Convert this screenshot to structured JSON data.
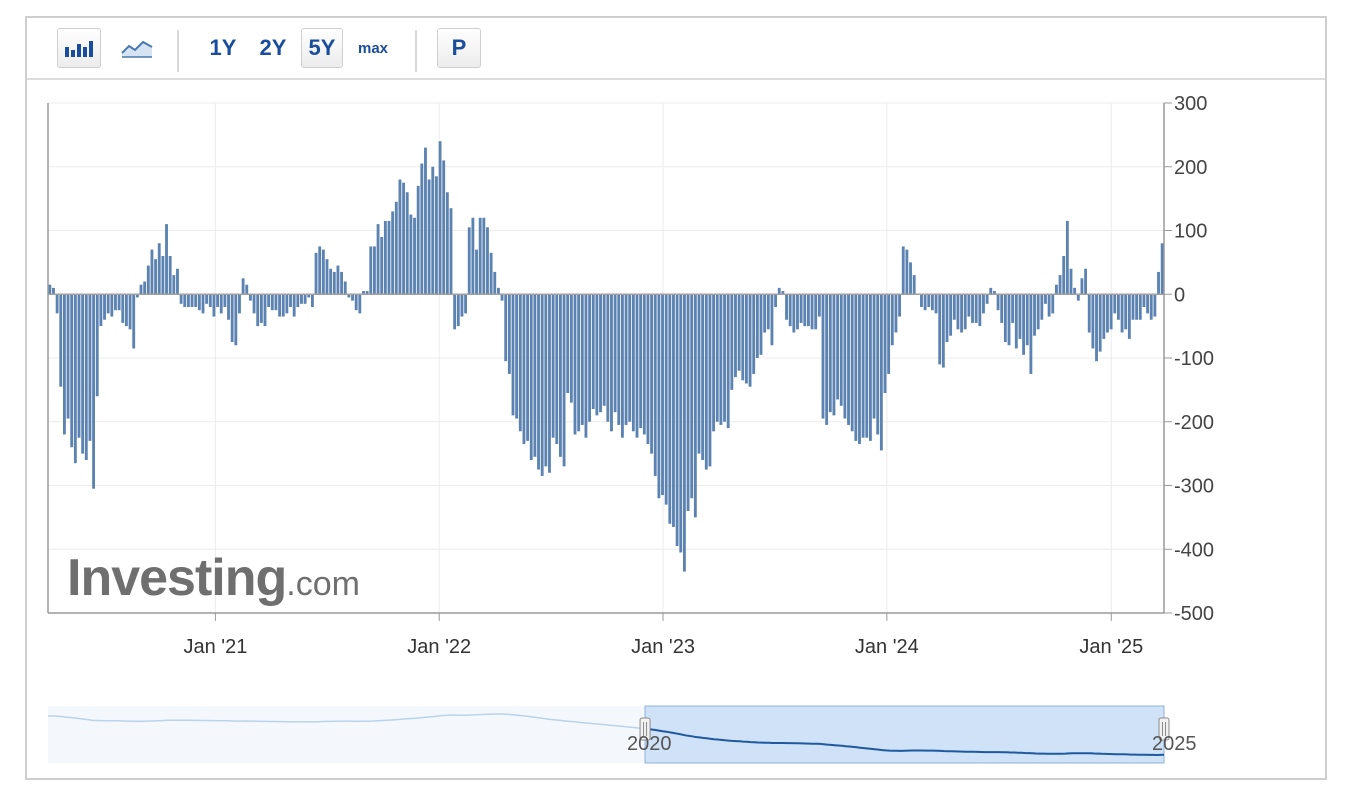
{
  "toolbar": {
    "range_buttons": [
      "1Y",
      "2Y",
      "5Y",
      "max"
    ],
    "active_range": "5Y",
    "p_label": "P",
    "bar_icon": "bar-chart-icon",
    "line_icon": "line-chart-icon"
  },
  "watermark": {
    "brand": "Investing",
    "suffix": ".com",
    "accent": "#f0a830"
  },
  "colors": {
    "bar": "#5b82b0",
    "grid": "#ececec",
    "axis": "#9a9a9a",
    "navigator_line": "#1f5a9e",
    "navigator_fill": "#cfe2f7",
    "navigator_bg_line": "#b9d3ec"
  },
  "chart_data": {
    "type": "bar",
    "ylim": [
      -500,
      300
    ],
    "y_ticks": [
      300,
      200,
      100,
      0,
      -100,
      -200,
      -300,
      -400,
      -500
    ],
    "x_ticks": [
      {
        "label": "Jan '21",
        "date": "2021-01-01"
      },
      {
        "label": "Jan '22",
        "date": "2022-01-01"
      },
      {
        "label": "Jan '23",
        "date": "2023-01-01"
      },
      {
        "label": "Jan '24",
        "date": "2024-01-01"
      },
      {
        "label": "Jan '25",
        "date": "2025-01-01"
      }
    ],
    "x_start": "2020-04-03",
    "x_end": "2025-03-28",
    "frequency": "weekly",
    "grid": true,
    "series": [
      {
        "values": [
          15,
          10,
          -30,
          -145,
          -220,
          -195,
          -240,
          -265,
          -225,
          -250,
          -260,
          -230,
          -305,
          -160,
          -50,
          -40,
          -30,
          -35,
          -25,
          -25,
          -45,
          -50,
          -55,
          -85,
          -5,
          15,
          20,
          45,
          70,
          55,
          80,
          60,
          110,
          60,
          30,
          40,
          -15,
          -20,
          -20,
          -20,
          -20,
          -25,
          -30,
          -15,
          -20,
          -35,
          -20,
          -30,
          -20,
          -40,
          -75,
          -80,
          -30,
          25,
          15,
          -10,
          -30,
          -50,
          -45,
          -50,
          -20,
          -25,
          -25,
          -35,
          -35,
          -30,
          -20,
          -35,
          -20,
          -15,
          -15,
          -5,
          -20,
          65,
          75,
          70,
          55,
          40,
          35,
          45,
          35,
          20,
          -5,
          -10,
          -25,
          -30,
          5,
          5,
          75,
          75,
          110,
          90,
          115,
          115,
          130,
          145,
          180,
          175,
          160,
          125,
          120,
          170,
          205,
          230,
          180,
          200,
          185,
          240,
          210,
          160,
          135,
          -55,
          -50,
          -35,
          -30,
          105,
          120,
          70,
          120,
          120,
          105,
          65,
          35,
          10,
          -10,
          -105,
          -125,
          -190,
          -195,
          -215,
          -235,
          -230,
          -260,
          -255,
          -275,
          -285,
          -270,
          -280,
          -225,
          -235,
          -255,
          -270,
          -155,
          -170,
          -220,
          -215,
          -205,
          -225,
          -200,
          -180,
          -190,
          -185,
          -175,
          -200,
          -215,
          -185,
          -205,
          -225,
          -205,
          -200,
          -215,
          -225,
          -210,
          -220,
          -235,
          -250,
          -285,
          -320,
          -315,
          -330,
          -360,
          -365,
          -395,
          -405,
          -435,
          -340,
          -320,
          -350,
          -250,
          -260,
          -275,
          -270,
          -215,
          -200,
          -205,
          -200,
          -210,
          -150,
          -130,
          -120,
          -135,
          -140,
          -145,
          -125,
          -100,
          -95,
          -60,
          -55,
          -80,
          -20,
          10,
          5,
          -40,
          -50,
          -60,
          -55,
          -45,
          -50,
          -50,
          -55,
          -55,
          -35,
          -195,
          -205,
          -185,
          -190,
          -165,
          -175,
          -195,
          -205,
          -215,
          -230,
          -235,
          -225,
          -225,
          -230,
          -195,
          -220,
          -245,
          -155,
          -125,
          -80,
          -60,
          -35,
          75,
          70,
          50,
          30,
          0,
          -20,
          -25,
          -20,
          -25,
          -30,
          -110,
          -115,
          -75,
          -65,
          -40,
          -55,
          -60,
          -55,
          -35,
          -45,
          -45,
          -50,
          -30,
          -15,
          10,
          5,
          -25,
          -45,
          -75,
          -80,
          -45,
          -85,
          -70,
          -95,
          -80,
          -125,
          -65,
          -55,
          -40,
          -15,
          -35,
          -30,
          15,
          30,
          60,
          115,
          40,
          10,
          -10,
          25,
          40,
          -60,
          -85,
          -105,
          -90,
          -70,
          -60,
          -55,
          -30,
          -40,
          -60,
          -55,
          -70,
          -40,
          -40,
          -40,
          -20,
          -30,
          -40,
          -35,
          35,
          80
        ]
      }
    ]
  },
  "navigator": {
    "start_label": "2020",
    "end_label": "2025",
    "selection_start_frac": 0.535,
    "selection_end_frac": 1.0
  }
}
